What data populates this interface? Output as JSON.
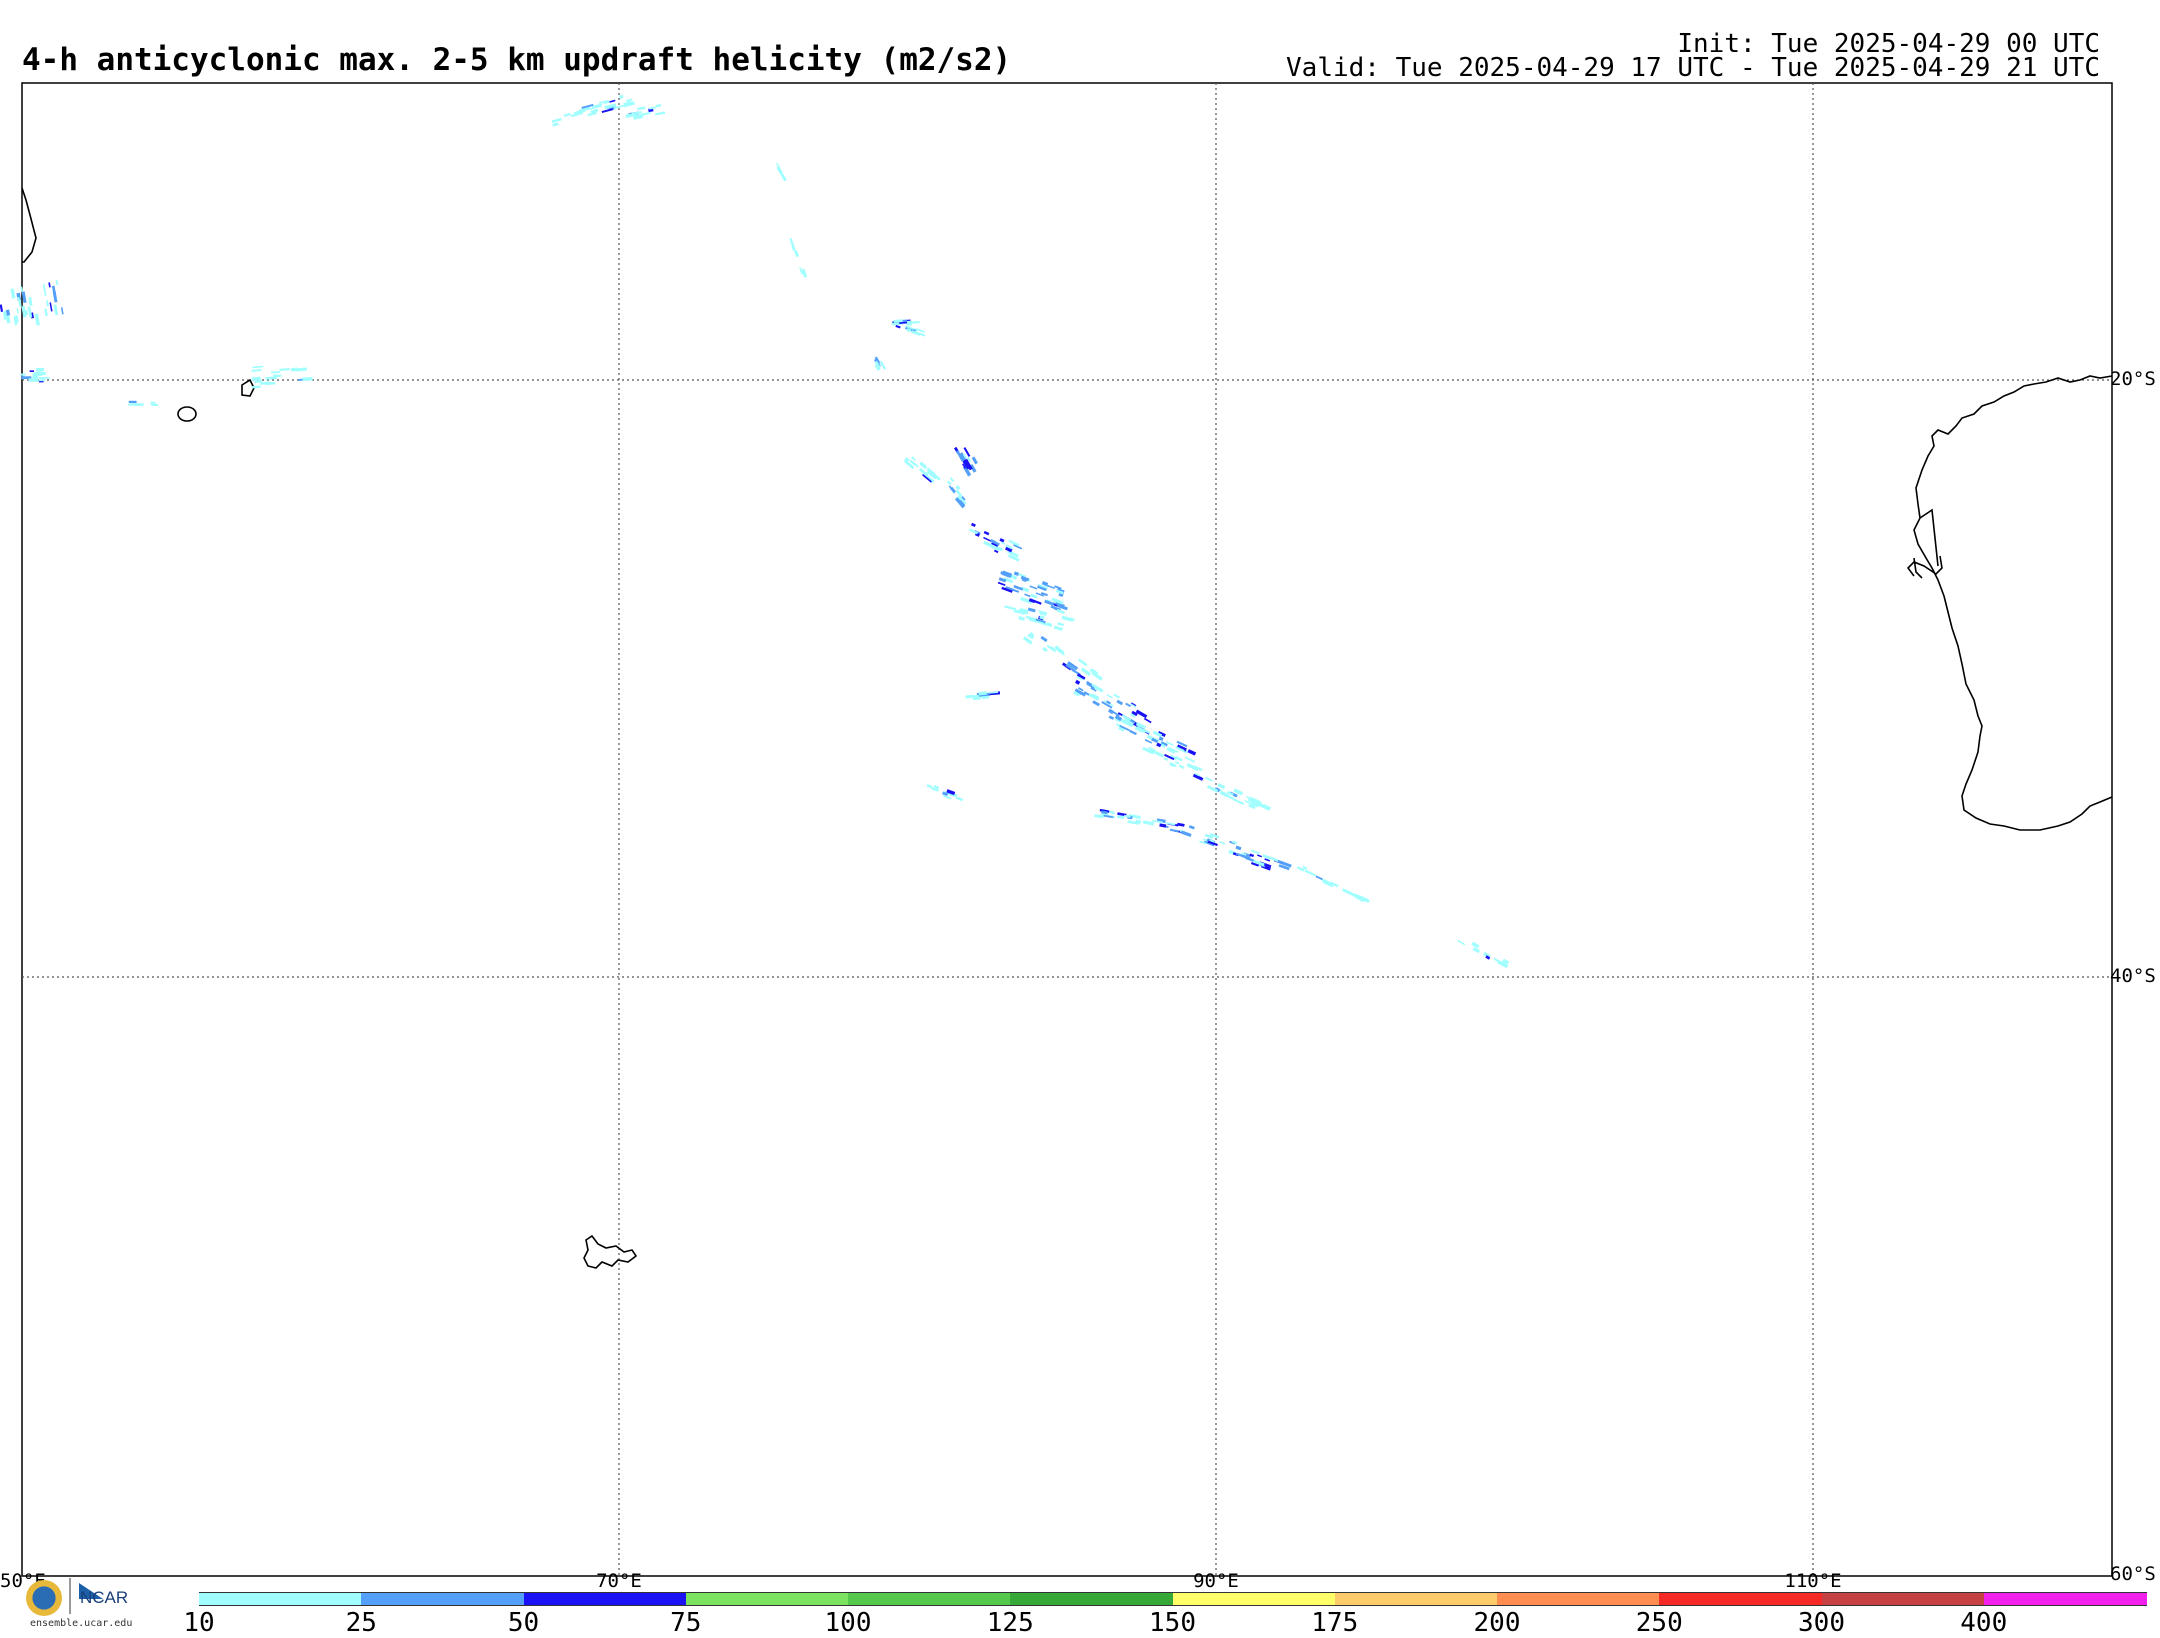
{
  "header": {
    "title": "4-h anticyclonic max. 2-5 km updraft helicity (m2/s2)",
    "init": "Init: Tue 2025-04-29 00 UTC",
    "valid": "Valid: Tue 2025-04-29 17 UTC - Tue 2025-04-29 21 UTC"
  },
  "map": {
    "lon_range": [
      50,
      120
    ],
    "lat_range": [
      -60,
      -10
    ],
    "lat_labels": [
      "20°S",
      "40°S",
      "60°S"
    ],
    "lon_labels": [
      "50°E",
      "70°E",
      "90°E",
      "110°E"
    ],
    "grid": true
  },
  "colorbar": {
    "ticks": [
      "10",
      "25",
      "50",
      "75",
      "100",
      "125",
      "150",
      "175",
      "200",
      "250",
      "300",
      "400"
    ],
    "colors": [
      "#a0fffe",
      "#54a0f8",
      "#1a12f5",
      "#7be35f",
      "#55c94b",
      "#35a838",
      "#ffff6a",
      "#fecb6a",
      "#fe8d52",
      "#f52a26",
      "#c54142",
      "#f220ec"
    ]
  },
  "logos": {
    "nsf": "nsf-logo",
    "ncar_text": "NCAR",
    "url": "ensemble.ucar.edu"
  }
}
